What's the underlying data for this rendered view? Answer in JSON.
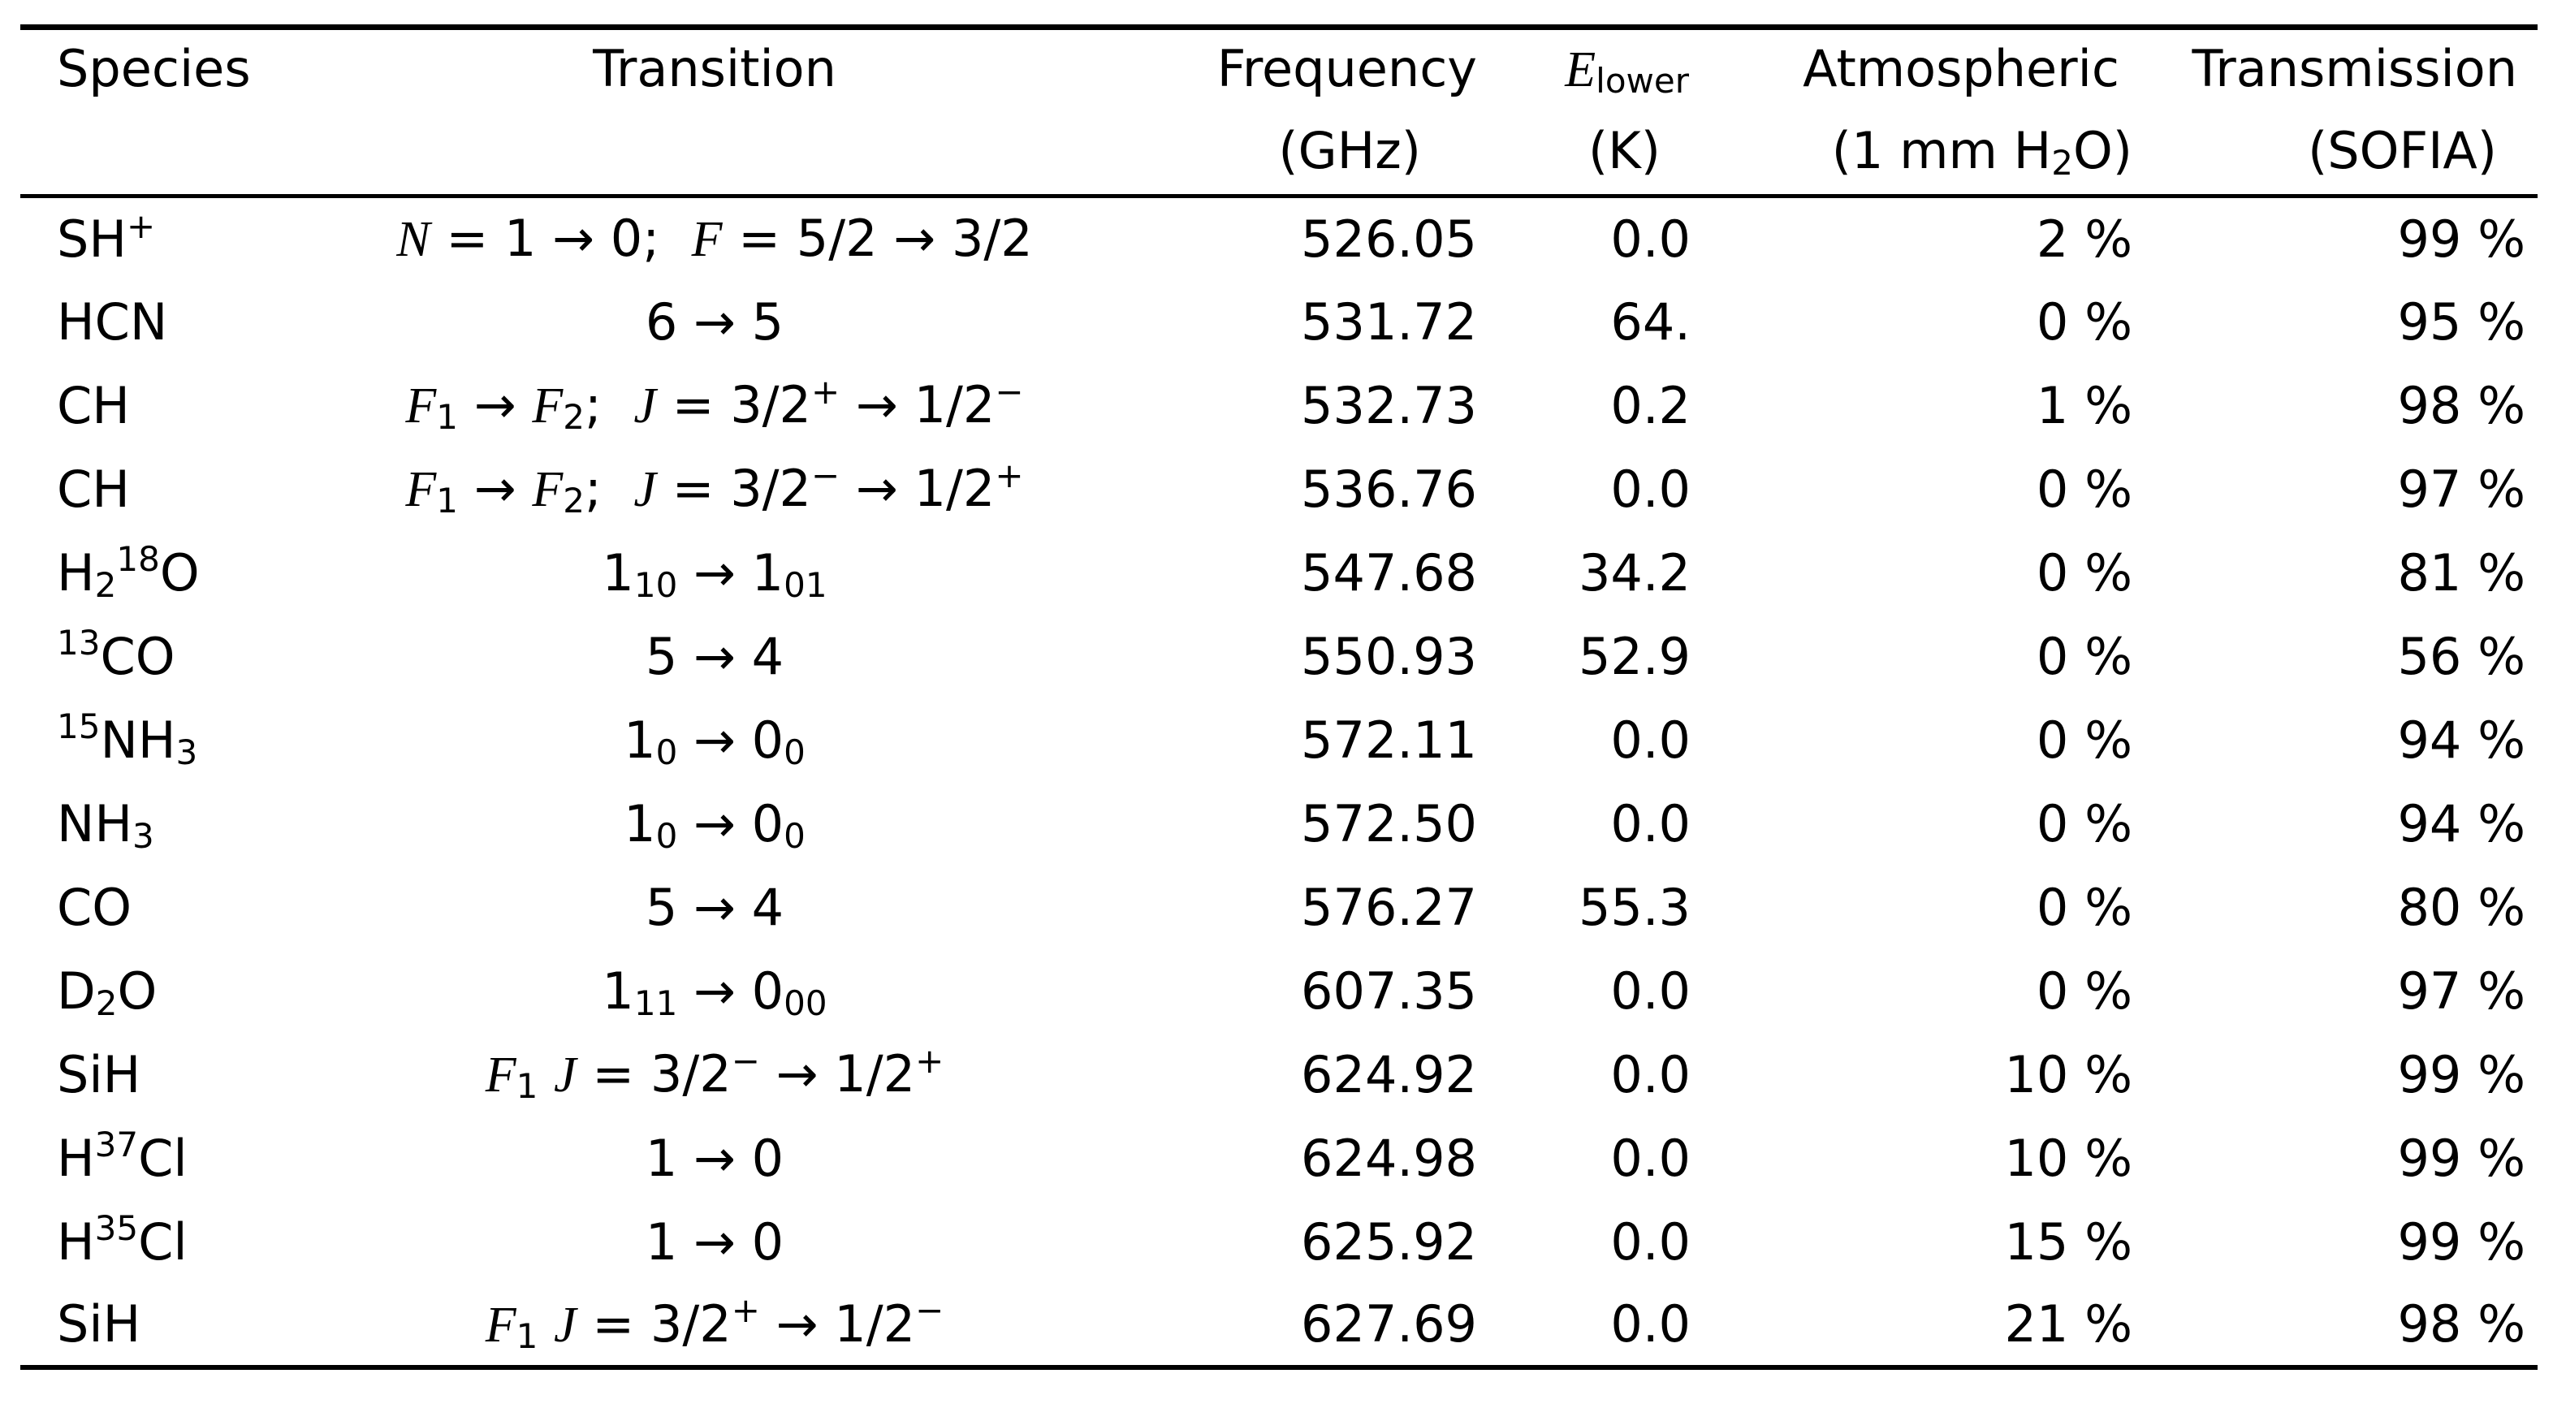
{
  "page": {
    "background": "#ffffff",
    "text_color": "#000000",
    "rule_color": "#000000"
  },
  "table": {
    "columns": [
      {
        "id": "species",
        "title": [
          {
            "t": "Species"
          }
        ],
        "unit": []
      },
      {
        "id": "transition",
        "title": [
          {
            "t": "Transition"
          }
        ],
        "unit": []
      },
      {
        "id": "frequency",
        "title": [
          {
            "t": "Frequency"
          }
        ],
        "unit": [
          {
            "t": "(GHz)"
          }
        ]
      },
      {
        "id": "e_lower",
        "title": [
          {
            "i": "E"
          },
          {
            "sub": "lower"
          }
        ],
        "unit": [
          {
            "t": "(K)"
          }
        ]
      },
      {
        "id": "atmospheric",
        "title": [
          {
            "t": "Atmospheric"
          }
        ],
        "unit": [
          {
            "t": "(1 mm H"
          },
          {
            "sub": "2"
          },
          {
            "t": "O)"
          }
        ]
      },
      {
        "id": "transmission",
        "title": [
          {
            "t": "Transmission"
          }
        ],
        "unit": [
          {
            "t": "(SOFIA)"
          }
        ]
      }
    ],
    "rows": [
      {
        "species": [
          {
            "t": "SH"
          },
          {
            "sup": "+"
          }
        ],
        "transition": [
          {
            "i": "N"
          },
          {
            "t": " = 1 → 0;  "
          },
          {
            "i": "F"
          },
          {
            "t": " = 5/2 → 3/2"
          }
        ],
        "frequency": "526.05",
        "e_lower": "0.0",
        "atmospheric": "2 %",
        "transmission": "99 %"
      },
      {
        "species": [
          {
            "t": "HCN"
          }
        ],
        "transition": [
          {
            "t": "6 → 5"
          }
        ],
        "frequency": "531.72",
        "e_lower": "64.",
        "atmospheric": "0 %",
        "transmission": "95 %"
      },
      {
        "species": [
          {
            "t": "CH"
          }
        ],
        "transition": [
          {
            "i": "F"
          },
          {
            "sub": "1"
          },
          {
            "t": " → "
          },
          {
            "i": "F"
          },
          {
            "sub": "2"
          },
          {
            "t": ";  "
          },
          {
            "i": "J"
          },
          {
            "t": " = 3/2"
          },
          {
            "sup": "+"
          },
          {
            "t": " → 1/2"
          },
          {
            "sup": "−"
          }
        ],
        "frequency": "532.73",
        "e_lower": "0.2",
        "atmospheric": "1 %",
        "transmission": "98 %"
      },
      {
        "species": [
          {
            "t": "CH"
          }
        ],
        "transition": [
          {
            "i": "F"
          },
          {
            "sub": "1"
          },
          {
            "t": " → "
          },
          {
            "i": "F"
          },
          {
            "sub": "2"
          },
          {
            "t": ";  "
          },
          {
            "i": "J"
          },
          {
            "t": " = 3/2"
          },
          {
            "sup": "−"
          },
          {
            "t": " → 1/2"
          },
          {
            "sup": "+"
          }
        ],
        "frequency": "536.76",
        "e_lower": "0.0",
        "atmospheric": "0 %",
        "transmission": "97 %"
      },
      {
        "species": [
          {
            "t": "H"
          },
          {
            "sub": "2"
          },
          {
            "sup": "18"
          },
          {
            "t": "O"
          }
        ],
        "transition": [
          {
            "t": "1"
          },
          {
            "sub": "10"
          },
          {
            "t": " → 1"
          },
          {
            "sub": "01"
          }
        ],
        "frequency": "547.68",
        "e_lower": "34.2",
        "atmospheric": "0 %",
        "transmission": "81 %"
      },
      {
        "species": [
          {
            "sup": "13"
          },
          {
            "t": "CO"
          }
        ],
        "transition": [
          {
            "t": "5 → 4"
          }
        ],
        "frequency": "550.93",
        "e_lower": "52.9",
        "atmospheric": "0 %",
        "transmission": "56 %"
      },
      {
        "species": [
          {
            "sup": "15"
          },
          {
            "t": "NH"
          },
          {
            "sub": "3"
          }
        ],
        "transition": [
          {
            "t": "1"
          },
          {
            "sub": "0"
          },
          {
            "t": " → 0"
          },
          {
            "sub": "0"
          }
        ],
        "frequency": "572.11",
        "e_lower": "0.0",
        "atmospheric": "0 %",
        "transmission": "94 %"
      },
      {
        "species": [
          {
            "t": "NH"
          },
          {
            "sub": "3"
          }
        ],
        "transition": [
          {
            "t": "1"
          },
          {
            "sub": "0"
          },
          {
            "t": " → 0"
          },
          {
            "sub": "0"
          }
        ],
        "frequency": "572.50",
        "e_lower": "0.0",
        "atmospheric": "0 %",
        "transmission": "94 %"
      },
      {
        "species": [
          {
            "t": "CO"
          }
        ],
        "transition": [
          {
            "t": "5 → 4"
          }
        ],
        "frequency": "576.27",
        "e_lower": "55.3",
        "atmospheric": "0 %",
        "transmission": "80 %"
      },
      {
        "species": [
          {
            "t": "D"
          },
          {
            "sub": "2"
          },
          {
            "t": "O"
          }
        ],
        "transition": [
          {
            "t": "1"
          },
          {
            "sub": "11"
          },
          {
            "t": " → 0"
          },
          {
            "sub": "00"
          }
        ],
        "frequency": "607.35",
        "e_lower": "0.0",
        "atmospheric": "0 %",
        "transmission": "97 %"
      },
      {
        "species": [
          {
            "t": "SiH"
          }
        ],
        "transition": [
          {
            "i": "F"
          },
          {
            "sub": "1"
          },
          {
            "t": " "
          },
          {
            "i": "J"
          },
          {
            "t": " = 3/2"
          },
          {
            "sup": "−"
          },
          {
            "t": " → 1/2"
          },
          {
            "sup": "+"
          }
        ],
        "frequency": "624.92",
        "e_lower": "0.0",
        "atmospheric": "10 %",
        "transmission": "99 %"
      },
      {
        "species": [
          {
            "t": "H"
          },
          {
            "sup": "37"
          },
          {
            "t": "Cl"
          }
        ],
        "transition": [
          {
            "t": "1 → 0"
          }
        ],
        "frequency": "624.98",
        "e_lower": "0.0",
        "atmospheric": "10 %",
        "transmission": "99 %"
      },
      {
        "species": [
          {
            "t": "H"
          },
          {
            "sup": "35"
          },
          {
            "t": "Cl"
          }
        ],
        "transition": [
          {
            "t": "1 → 0"
          }
        ],
        "frequency": "625.92",
        "e_lower": "0.0",
        "atmospheric": "15 %",
        "transmission": "99 %"
      },
      {
        "species": [
          {
            "t": "SiH"
          }
        ],
        "transition": [
          {
            "i": "F"
          },
          {
            "sub": "1"
          },
          {
            "t": " "
          },
          {
            "i": "J"
          },
          {
            "t": " = 3/2"
          },
          {
            "sup": "+"
          },
          {
            "t": " → 1/2"
          },
          {
            "sup": "−"
          }
        ],
        "frequency": "627.69",
        "e_lower": "0.0",
        "atmospheric": "21 %",
        "transmission": "98 %"
      }
    ]
  }
}
